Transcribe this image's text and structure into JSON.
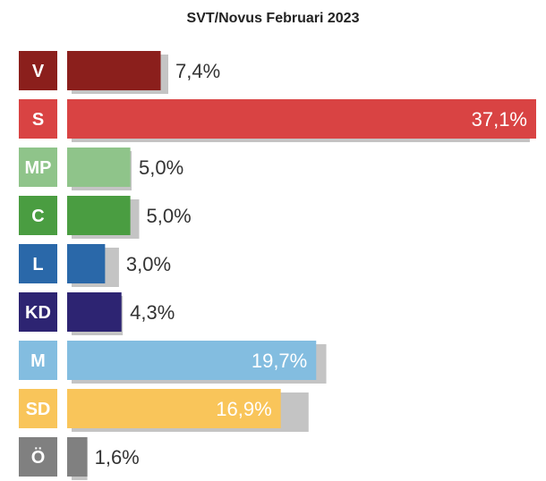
{
  "chart_data": {
    "type": "bar",
    "orientation": "horizontal",
    "title": "SVT/Novus Februari 2023",
    "categories": [
      "V",
      "S",
      "MP",
      "C",
      "L",
      "KD",
      "M",
      "SD",
      "Ö"
    ],
    "value_labels": [
      "7,4%",
      "37,1%",
      "5,0%",
      "5,0%",
      "3,0%",
      "4,3%",
      "19,7%",
      "16,9%",
      "1,6%"
    ],
    "series": [
      {
        "values": [
          7.4,
          37.1,
          5.0,
          5.0,
          3.0,
          4.3,
          19.7,
          16.9,
          1.6
        ]
      },
      {
        "values": [
          8.0,
          36.6,
          5.1,
          5.7,
          4.1,
          4.4,
          20.5,
          19.1,
          1.6
        ]
      }
    ],
    "colors": [
      "#8b1f1c",
      "#d94343",
      "#8fc48a",
      "#4a9d41",
      "#2a68a9",
      "#2d2472",
      "#83bde0",
      "#f9c55a",
      "#808080"
    ],
    "shadow_color": "#c4c4c4",
    "label_inside": [
      false,
      true,
      false,
      false,
      false,
      false,
      true,
      true,
      false
    ],
    "xlim": [
      0,
      37.1
    ],
    "grid": false,
    "legend": "none"
  }
}
